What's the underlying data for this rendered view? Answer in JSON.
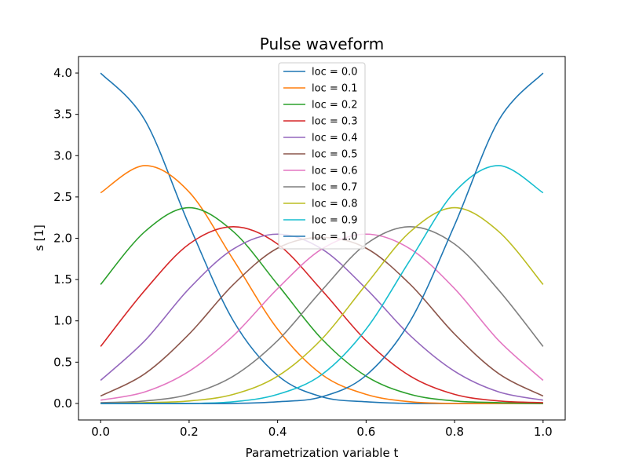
{
  "chart_data": {
    "type": "line",
    "title": "Pulse waveform",
    "xlabel": "Parametrization variable t",
    "ylabel": "s [1]",
    "xlim": [
      -0.05,
      1.05
    ],
    "ylim": [
      -0.2,
      4.2
    ],
    "xticks": [
      0.0,
      0.2,
      0.4,
      0.6,
      0.8,
      1.0
    ],
    "xtick_labels": [
      "0.0",
      "0.2",
      "0.4",
      "0.6",
      "0.8",
      "1.0"
    ],
    "yticks": [
      0.0,
      0.5,
      1.0,
      1.5,
      2.0,
      2.5,
      3.0,
      3.5,
      4.0
    ],
    "ytick_labels": [
      "0.0",
      "0.5",
      "1.0",
      "1.5",
      "2.0",
      "2.5",
      "3.0",
      "3.5",
      "4.0"
    ],
    "grid": false,
    "legend_position": "top-center",
    "x": [
      0.0,
      0.1,
      0.2,
      0.3,
      0.4,
      0.5,
      0.6,
      0.7,
      0.8,
      0.9,
      1.0
    ],
    "series": [
      {
        "name": "loc = 0.0",
        "color": "#1f77b4",
        "values": [
          4.0,
          3.43,
          2.16,
          1.0,
          0.34,
          0.08,
          0.02,
          0.0,
          0.0,
          0.0,
          0.0
        ]
      },
      {
        "name": "loc = 0.1",
        "color": "#ff7f0e",
        "values": [
          2.55,
          2.88,
          2.56,
          1.74,
          0.9,
          0.35,
          0.11,
          0.02,
          0.0,
          0.0,
          0.0
        ]
      },
      {
        "name": "loc = 0.2",
        "color": "#2ca02c",
        "values": [
          1.44,
          2.08,
          2.37,
          2.08,
          1.44,
          0.78,
          0.33,
          0.11,
          0.03,
          0.01,
          0.0
        ]
      },
      {
        "name": "loc = 0.3",
        "color": "#d62728",
        "values": [
          0.69,
          1.37,
          1.93,
          2.14,
          1.93,
          1.37,
          0.76,
          0.33,
          0.11,
          0.03,
          0.01
        ]
      },
      {
        "name": "loc = 0.4",
        "color": "#9467bd",
        "values": [
          0.28,
          0.76,
          1.39,
          1.87,
          2.05,
          1.87,
          1.39,
          0.82,
          0.39,
          0.14,
          0.04
        ]
      },
      {
        "name": "loc = 0.5",
        "color": "#8c564b",
        "values": [
          0.09,
          0.36,
          0.84,
          1.44,
          1.88,
          2.01,
          1.88,
          1.44,
          0.84,
          0.36,
          0.09
        ]
      },
      {
        "name": "loc = 0.6",
        "color": "#e377c2",
        "values": [
          0.04,
          0.14,
          0.39,
          0.82,
          1.39,
          1.87,
          2.05,
          1.87,
          1.39,
          0.76,
          0.28
        ]
      },
      {
        "name": "loc = 0.7",
        "color": "#7f7f7f",
        "values": [
          0.01,
          0.03,
          0.11,
          0.33,
          0.76,
          1.37,
          1.93,
          2.14,
          1.93,
          1.37,
          0.69
        ]
      },
      {
        "name": "loc = 0.8",
        "color": "#bcbd22",
        "values": [
          0.0,
          0.01,
          0.03,
          0.11,
          0.33,
          0.78,
          1.44,
          2.08,
          2.37,
          2.08,
          1.44
        ]
      },
      {
        "name": "loc = 0.9",
        "color": "#17becf",
        "values": [
          0.0,
          0.0,
          0.0,
          0.02,
          0.11,
          0.35,
          0.9,
          1.74,
          2.56,
          2.88,
          2.55
        ]
      },
      {
        "name": "loc = 1.0",
        "color": "#1f77b4",
        "values": [
          0.0,
          0.0,
          0.0,
          0.0,
          0.02,
          0.08,
          0.34,
          1.0,
          2.16,
          3.43,
          4.0
        ]
      }
    ]
  }
}
